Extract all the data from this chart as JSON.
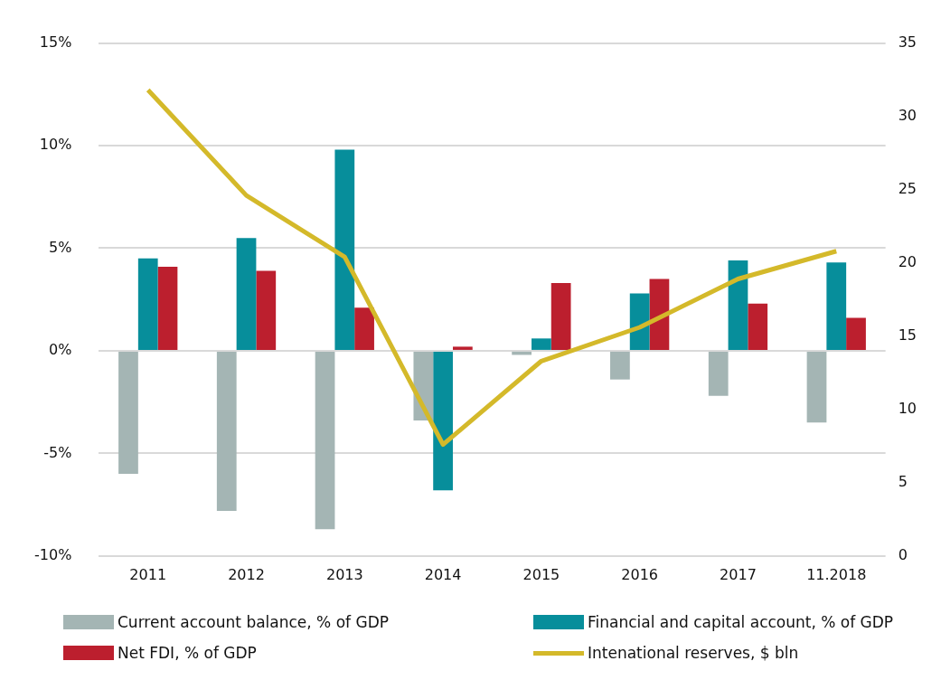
{
  "chart_data": {
    "type": "bar",
    "categories": [
      "2011",
      "2012",
      "2013",
      "2014",
      "2015",
      "2016",
      "2017",
      "11.2018"
    ],
    "series": [
      {
        "name": "Current account balance, % of GDP",
        "color": "#a4b5b4",
        "values": [
          -6.0,
          -7.8,
          -8.7,
          -3.4,
          -0.2,
          -1.4,
          -2.2,
          -3.5
        ]
      },
      {
        "name": "Financial and capital account, % of GDP",
        "color": "#078e9b",
        "values": [
          4.5,
          5.5,
          9.8,
          -6.8,
          0.6,
          2.8,
          4.4,
          4.3
        ]
      },
      {
        "name": "Net FDI, % of GDP",
        "color": "#bc1f2e",
        "values": [
          4.1,
          3.9,
          2.1,
          0.2,
          3.3,
          3.5,
          2.3,
          1.6
        ]
      },
      {
        "name": "Intenational reserves, $ bln",
        "color": "#d4b92a",
        "type": "line",
        "axis": "y2",
        "values": [
          31.8,
          24.6,
          20.4,
          7.6,
          13.3,
          15.6,
          18.9,
          20.8
        ]
      }
    ],
    "ylim": [
      -10,
      15
    ],
    "yticks": [
      {
        "value": -10,
        "label": "-10%"
      },
      {
        "value": -5,
        "label": "-5%"
      },
      {
        "value": 0,
        "label": "0%"
      },
      {
        "value": 5,
        "label": "5%"
      },
      {
        "value": 10,
        "label": "10%"
      },
      {
        "value": 15,
        "label": "15%"
      }
    ],
    "y2lim": [
      0,
      35
    ],
    "y2ticks": [
      0,
      5,
      10,
      15,
      20,
      25,
      30,
      35
    ],
    "grid": "y",
    "legend": "bottom",
    "marker": "none",
    "line_style": "solid"
  }
}
